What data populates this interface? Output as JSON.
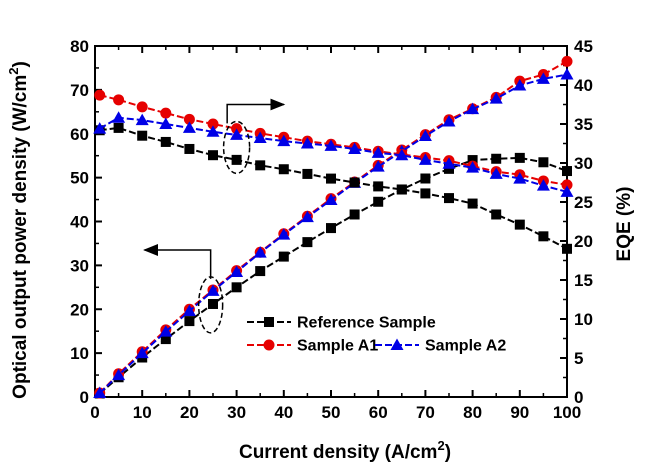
{
  "chart_data": {
    "type": "line",
    "xlabel": "Current density (A/cm",
    "xlabel_sup": "2",
    "xlabel_end": ")",
    "ylabel_left": "Optical output power density (W/cm",
    "ylabel_left_sup": "2",
    "ylabel_left_end": ")",
    "ylabel_right": "EQE (%)",
    "xlim": [
      0,
      100
    ],
    "ylim_left": [
      0,
      80
    ],
    "ylim_right": [
      0,
      45
    ],
    "x_ticks": [
      0,
      10,
      20,
      30,
      40,
      50,
      60,
      70,
      80,
      90,
      100
    ],
    "y_left_ticks": [
      0,
      10,
      20,
      30,
      40,
      50,
      60,
      70,
      80
    ],
    "y_right_ticks": [
      0,
      5,
      10,
      15,
      20,
      25,
      30,
      35,
      40,
      45
    ],
    "x": [
      1,
      5,
      10,
      15,
      20,
      25,
      30,
      35,
      40,
      45,
      50,
      55,
      60,
      65,
      70,
      75,
      80,
      85,
      90,
      95,
      100
    ],
    "series": [
      {
        "name": "Reference Sample",
        "axis": "left",
        "metric": "power",
        "color": "#000000",
        "marker": "square",
        "values": [
          0.8,
          4.5,
          9.0,
          13.2,
          17.3,
          21.2,
          25.0,
          28.7,
          32.0,
          35.3,
          38.5,
          41.6,
          44.5,
          47.3,
          49.8,
          52.0,
          54.0,
          54.3,
          54.5,
          53.5,
          51.5
        ]
      },
      {
        "name": "Sample A1",
        "axis": "left",
        "metric": "power",
        "color": "#e60000",
        "marker": "circle",
        "values": [
          0.9,
          5.3,
          10.3,
          15.3,
          20.0,
          24.4,
          28.8,
          33.0,
          37.2,
          41.2,
          45.2,
          49.0,
          52.8,
          56.3,
          59.8,
          63.2,
          65.7,
          68.3,
          72.0,
          73.5,
          76.5
        ]
      },
      {
        "name": "Sample A2",
        "axis": "left",
        "metric": "power",
        "color": "#0000e6",
        "marker": "triangle",
        "values": [
          0.9,
          5.0,
          10.0,
          14.9,
          19.6,
          24.2,
          28.5,
          32.9,
          37.0,
          41.0,
          44.9,
          48.8,
          52.5,
          56.0,
          59.5,
          62.8,
          65.6,
          68.0,
          71.0,
          72.5,
          73.5
        ]
      },
      {
        "name": "Reference Sample",
        "axis": "right",
        "metric": "eqe",
        "color": "#000000",
        "marker": "square",
        "values": [
          34.2,
          34.5,
          33.5,
          32.7,
          31.8,
          31.0,
          30.4,
          29.7,
          29.2,
          28.6,
          28.0,
          27.5,
          27.0,
          26.6,
          26.1,
          25.5,
          24.8,
          23.4,
          22.1,
          20.6,
          19.0
        ]
      },
      {
        "name": "Sample A1",
        "axis": "right",
        "metric": "eqe",
        "color": "#e60000",
        "marker": "circle",
        "values": [
          38.7,
          38.1,
          37.2,
          36.4,
          35.6,
          35.0,
          34.4,
          33.8,
          33.3,
          32.8,
          32.4,
          32.0,
          31.5,
          31.1,
          30.7,
          30.3,
          29.6,
          28.9,
          28.5,
          27.7,
          27.2
        ]
      },
      {
        "name": "Sample A2",
        "axis": "right",
        "metric": "eqe",
        "color": "#0000e6",
        "marker": "triangle",
        "values": [
          34.4,
          35.8,
          35.5,
          35.0,
          34.5,
          34.0,
          33.6,
          33.2,
          32.8,
          32.5,
          32.2,
          31.8,
          31.3,
          31.0,
          30.4,
          29.9,
          29.4,
          28.6,
          28.0,
          27.1,
          26.3
        ]
      }
    ],
    "legend": {
      "placement": "bottom-right",
      "entries": [
        {
          "name": "Reference Sample",
          "color": "#000000",
          "marker": "square"
        },
        {
          "name": "Sample A1",
          "color": "#e60000",
          "marker": "circle"
        },
        {
          "name": "Sample A2",
          "color": "#0000e6",
          "marker": "triangle"
        }
      ]
    },
    "annotations": [
      {
        "type": "ellipse-with-arrow",
        "target": "EQE curves",
        "arrow_direction": "right"
      },
      {
        "type": "ellipse-with-arrow",
        "target": "power curves",
        "arrow_direction": "left"
      }
    ],
    "grid": false
  }
}
